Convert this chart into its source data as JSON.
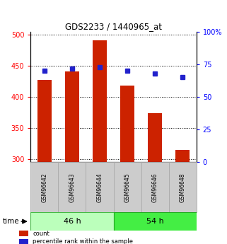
{
  "title": "GDS2233 / 1440965_at",
  "categories": [
    "GSM96642",
    "GSM96643",
    "GSM96644",
    "GSM96645",
    "GSM96646",
    "GSM96648"
  ],
  "bar_values": [
    427,
    441,
    491,
    418,
    374,
    315
  ],
  "percentile_values": [
    70,
    72,
    73,
    70,
    68,
    65
  ],
  "bar_color": "#cc2200",
  "percentile_color": "#2222cc",
  "ylim_left": [
    295,
    505
  ],
  "ylim_right": [
    0,
    100
  ],
  "yticks_left": [
    300,
    350,
    400,
    450,
    500
  ],
  "yticks_right": [
    0,
    25,
    50,
    75,
    100
  ],
  "ytick_labels_right": [
    "0",
    "25",
    "50",
    "75",
    "100%"
  ],
  "groups": [
    {
      "label": "46 h",
      "indices": [
        0,
        1,
        2
      ],
      "color_light": "#bbffbb",
      "color_dark": "#33cc33"
    },
    {
      "label": "54 h",
      "indices": [
        3,
        4,
        5
      ],
      "color_light": "#44ee44",
      "color_dark": "#22aa22"
    }
  ],
  "time_label": "time",
  "legend_items": [
    {
      "label": "count",
      "color": "#cc2200"
    },
    {
      "label": "percentile rank within the sample",
      "color": "#2222cc"
    }
  ],
  "bar_width": 0.5,
  "grid_color": "#000000",
  "background_color": "#ffffff",
  "label_area_bg": "#cccccc"
}
